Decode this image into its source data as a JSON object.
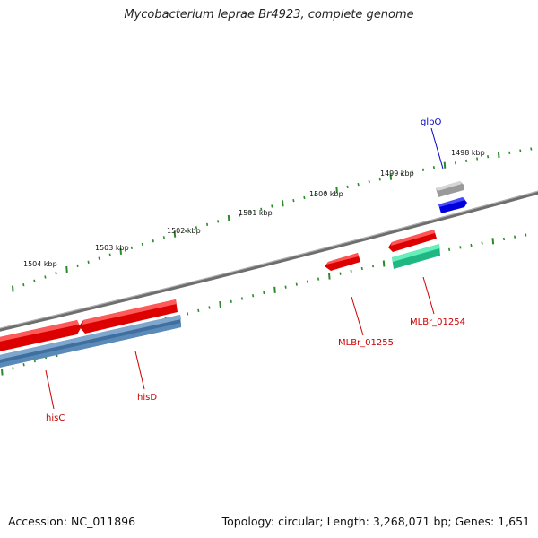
{
  "title": "Mycobacterium leprae Br4923, complete genome",
  "footer": {
    "accession": "Accession: NC_011896",
    "summary": "Topology: circular; Length: 3,268,071 bp; Genes: 1,651"
  },
  "colors": {
    "backbone": "#777777",
    "tick": "#2a8a2a",
    "gene_label": "#cc0000",
    "rna_label": "#0000cc",
    "cds": "#ee1111",
    "rrna_blue": "#4477aa",
    "gene_gray": "#aaaaaa",
    "trna": "#0000ee",
    "teal": "#22cc99"
  },
  "scale": {
    "labels": [
      "1498 kbp",
      "1499 kbp",
      "1500 kbp",
      "1501 kbp",
      "1502 kbp",
      "1503 kbp",
      "1504 kbp"
    ]
  },
  "genes": [
    {
      "label": "glbO",
      "color": "rna_label"
    },
    {
      "label": "MLBr_01254",
      "color": "gene_label"
    },
    {
      "label": "MLBr_01255",
      "color": "gene_label"
    },
    {
      "label": "hisD",
      "color": "gene_label"
    },
    {
      "label": "hisC",
      "color": "gene_label"
    }
  ]
}
